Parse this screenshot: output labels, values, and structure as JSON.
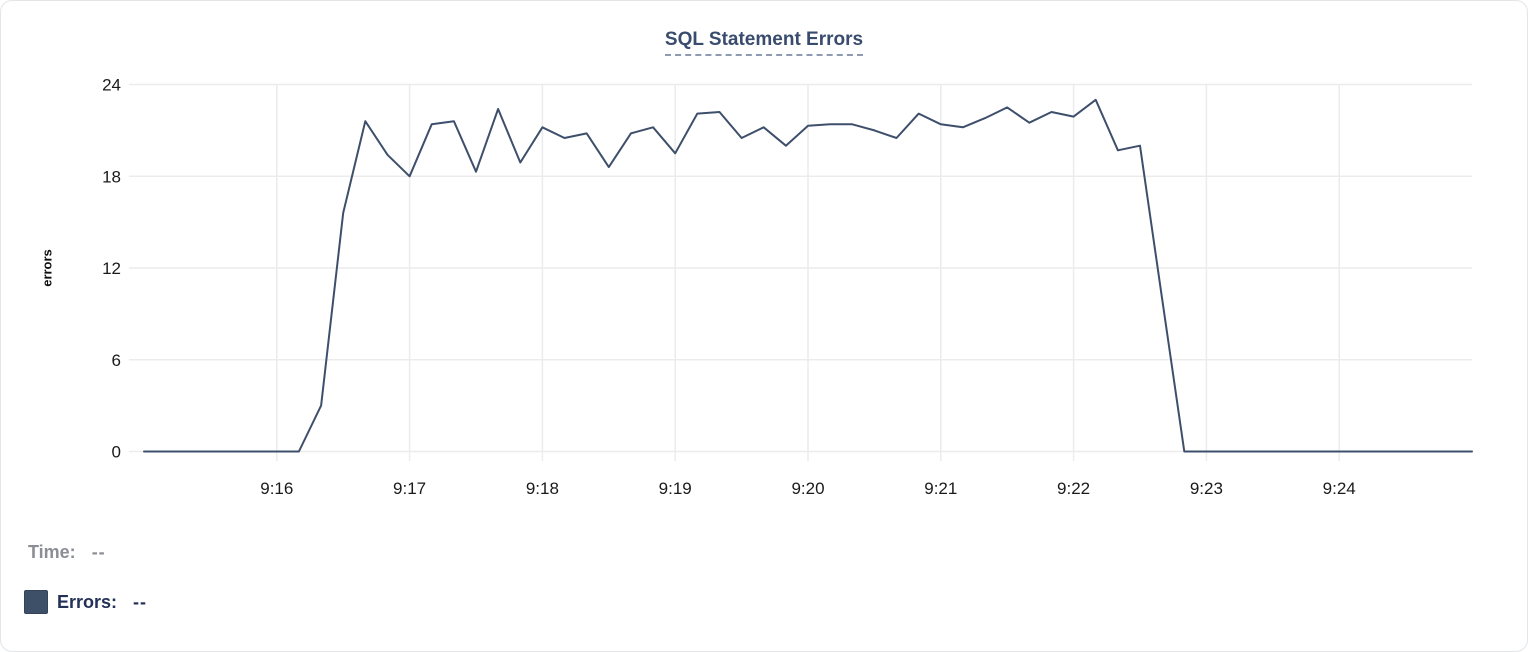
{
  "card": {
    "title": "SQL Statement Errors"
  },
  "chart_data": {
    "type": "line",
    "title": "SQL Statement Errors",
    "xlabel": "",
    "ylabel": "errors",
    "ylim": [
      0,
      24
    ],
    "y_ticks": [
      0,
      6,
      12,
      18,
      24
    ],
    "x_tick_labels": [
      "9:16",
      "9:17",
      "9:18",
      "9:19",
      "9:20",
      "9:21",
      "9:22",
      "9:23",
      "9:24"
    ],
    "x_tick_minutes": [
      1,
      2,
      3,
      4,
      5,
      6,
      7,
      8,
      9
    ],
    "x_start": "9:15:00",
    "x_end": "9:25:00",
    "x_domain_seconds": 600,
    "sample_interval_seconds": 10,
    "grid": true,
    "legend_position": "bottom-left",
    "series": [
      {
        "name": "Errors",
        "color": "#3e4f6b",
        "values": [
          0,
          0,
          0,
          0,
          0,
          0,
          0,
          0,
          3,
          15.6,
          21.6,
          19.4,
          18,
          21.4,
          21.6,
          18.3,
          22.4,
          18.9,
          21.2,
          20.5,
          20.8,
          18.6,
          20.8,
          21.2,
          19.5,
          22.1,
          22.2,
          20.5,
          21.2,
          20,
          21.3,
          21.4,
          21.4,
          21,
          20.5,
          22.1,
          21.4,
          21.2,
          21.8,
          22.5,
          21.5,
          22.2,
          21.9,
          23,
          19.7,
          20,
          10,
          0,
          0,
          0,
          0,
          0,
          0,
          0,
          0,
          0,
          0,
          0,
          0,
          0,
          0
        ]
      }
    ]
  },
  "legend": {
    "rows": [
      {
        "label": "Time:",
        "value": "--"
      },
      {
        "label": "Errors:",
        "value": "--"
      }
    ]
  },
  "colors": {
    "line": "#3e4f6b",
    "title": "#3a4c6e",
    "legend_marker": "#3e4f68",
    "time_label": "#8b8e96",
    "errors_label": "#233157",
    "grid": "#ececec",
    "tick_text": "#1a1a1a",
    "card_border": "#e3e5e8"
  }
}
